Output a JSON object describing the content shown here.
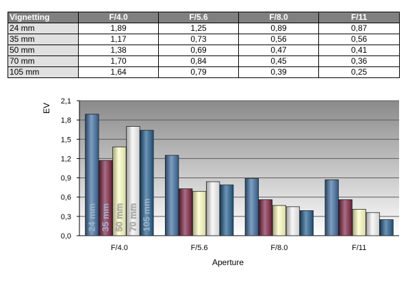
{
  "table": {
    "headers": [
      "Vignetting",
      "F/4.0",
      "F/5.6",
      "F/8.0",
      "F/11"
    ],
    "rows": [
      [
        "24 mm",
        "1,89",
        "1,25",
        "0,89",
        "0,87"
      ],
      [
        "35 mm",
        "1,17",
        "0,73",
        "0,56",
        "0,56"
      ],
      [
        "50 mm",
        "1,38",
        "0,69",
        "0,47",
        "0,41"
      ],
      [
        "70 mm",
        "1,70",
        "0,84",
        "0,45",
        "0,36"
      ],
      [
        "105 mm",
        "1,64",
        "0,79",
        "0,39",
        "0,25"
      ]
    ]
  },
  "chart_data": {
    "type": "bar",
    "categories": [
      "F/4.0",
      "F/5.6",
      "F/8.0",
      "F/11"
    ],
    "series": [
      {
        "name": "24 mm",
        "values": [
          1.89,
          1.25,
          0.89,
          0.87
        ],
        "color": "#3a6a9c"
      },
      {
        "name": "35 mm",
        "values": [
          1.17,
          0.73,
          0.56,
          0.56
        ],
        "color": "#7b2040"
      },
      {
        "name": "50 mm",
        "values": [
          1.38,
          0.69,
          0.47,
          0.41
        ],
        "color": "#ffffc0"
      },
      {
        "name": "70 mm",
        "values": [
          1.7,
          0.84,
          0.45,
          0.36
        ],
        "color": "#f4f4f4"
      },
      {
        "name": "105 mm",
        "values": [
          1.64,
          0.79,
          0.39,
          0.25
        ],
        "color": "#1f5a8c"
      }
    ],
    "xlabel": "Aperture",
    "ylabel": "EV",
    "ylim": [
      0,
      2.1
    ],
    "yticks": [
      "0,0",
      "0,3",
      "0,6",
      "0,9",
      "1,2",
      "1,5",
      "1,8",
      "2,1"
    ],
    "grid": true,
    "legend": "inside first group, vertical labels on bars"
  }
}
